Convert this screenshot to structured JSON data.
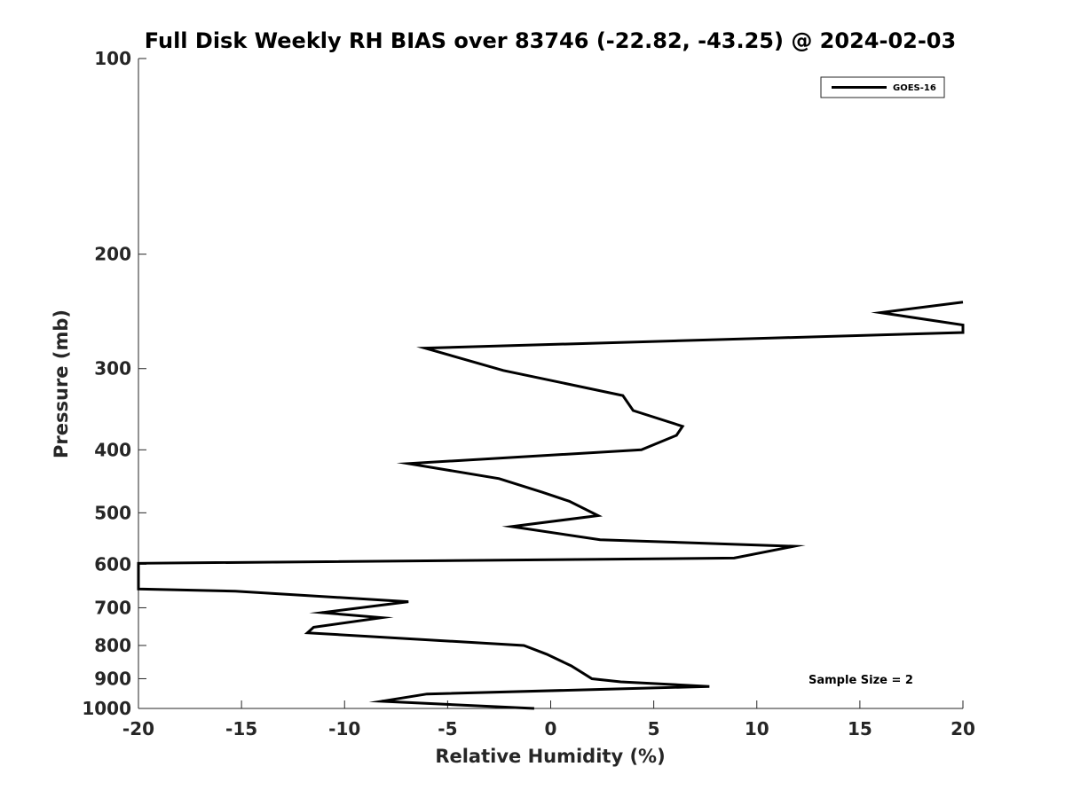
{
  "chart_data": {
    "type": "line",
    "title": "Full Disk Weekly RH BIAS over 83746 (-22.82, -43.25) @ 2024-02-03",
    "xlabel": "Relative Humidity (%)",
    "ylabel": "Pressure (mb)",
    "xlim": [
      -20,
      20
    ],
    "ylim": [
      100,
      1000
    ],
    "yscale": "log",
    "y_reversed": true,
    "grid": false,
    "legend_position": "top-right",
    "x_ticks": [
      -20,
      -15,
      -10,
      -5,
      0,
      5,
      10,
      15,
      20
    ],
    "x_tick_labels": [
      "-20",
      "-15",
      "-10",
      "-5",
      "0",
      "5",
      "10",
      "15",
      "20"
    ],
    "y_ticks": [
      100,
      200,
      300,
      400,
      500,
      600,
      700,
      800,
      900,
      1000
    ],
    "y_tick_labels": [
      "100",
      "200",
      "300",
      "400",
      "500",
      "600",
      "700",
      "800",
      "900",
      "1000"
    ],
    "series": [
      {
        "name": "GOES-16",
        "color": "#000000",
        "x": [
          -0.8,
          -8.2,
          -6.0,
          7.7,
          3.4,
          2.0,
          1.0,
          -0.2,
          -1.3,
          -11.8,
          -11.5,
          -8.2,
          -11.1,
          -6.9,
          -15.3,
          -20.0,
          -20.0,
          8.9,
          11.8,
          2.4,
          -1.9,
          2.3,
          0.9,
          -0.4,
          -2.5,
          -6.9,
          4.4,
          6.1,
          6.4,
          4.0,
          3.5,
          -2.3,
          -6.1,
          20.0,
          20.0,
          16.0,
          20.0
        ],
        "y": [
          1000,
          975,
          950,
          925,
          910,
          900,
          860,
          825,
          800,
          765,
          750,
          725,
          712,
          685,
          660,
          655,
          598,
          587,
          563,
          550,
          525,
          505,
          480,
          465,
          443,
          420,
          400,
          380,
          368,
          348,
          330,
          302,
          279,
          264,
          257,
          246,
          237
        ]
      }
    ],
    "annotations": [
      "Sample Size = 2"
    ]
  }
}
